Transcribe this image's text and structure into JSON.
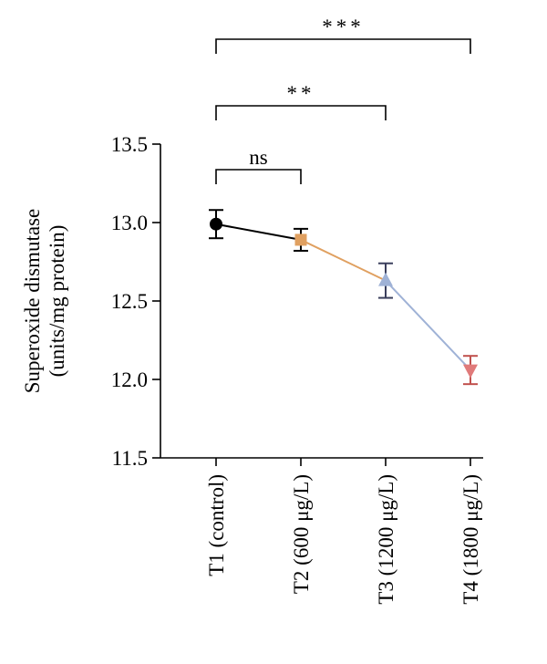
{
  "chart_data": {
    "type": "line",
    "title": "",
    "ylabel_lines": [
      "Superoxide dismutase",
      "(units/mg protein)"
    ],
    "xlabel": "",
    "ylim": [
      11.5,
      13.5
    ],
    "yticks": [
      "11.5",
      "12.0",
      "12.5",
      "13.0",
      "13.5"
    ],
    "categories": [
      "T1 (control)",
      "T2 (600 μg/L)",
      "T3 (1200 μg/L)",
      "T4 (1800 μg/L)"
    ],
    "values": [
      12.99,
      12.89,
      12.63,
      12.06
    ],
    "errors": [
      0.09,
      0.07,
      0.11,
      0.09
    ],
    "markers": [
      "circle",
      "square",
      "triangle-up",
      "triangle-down"
    ],
    "colors": [
      "#000000",
      "#e0a060",
      "#9fb2d6",
      "#e07a7a"
    ],
    "error_colors": [
      "#000000",
      "#000000",
      "#3a3f5c",
      "#c0504d"
    ],
    "segment_colors": [
      "#000000",
      "#e0a060",
      "#9fb2d6"
    ],
    "significance": [
      {
        "from": 0,
        "to": 1,
        "label": "ns"
      },
      {
        "from": 0,
        "to": 2,
        "label": "**"
      },
      {
        "from": 0,
        "to": 3,
        "label": "***"
      }
    ],
    "grid": false,
    "legend": false
  }
}
